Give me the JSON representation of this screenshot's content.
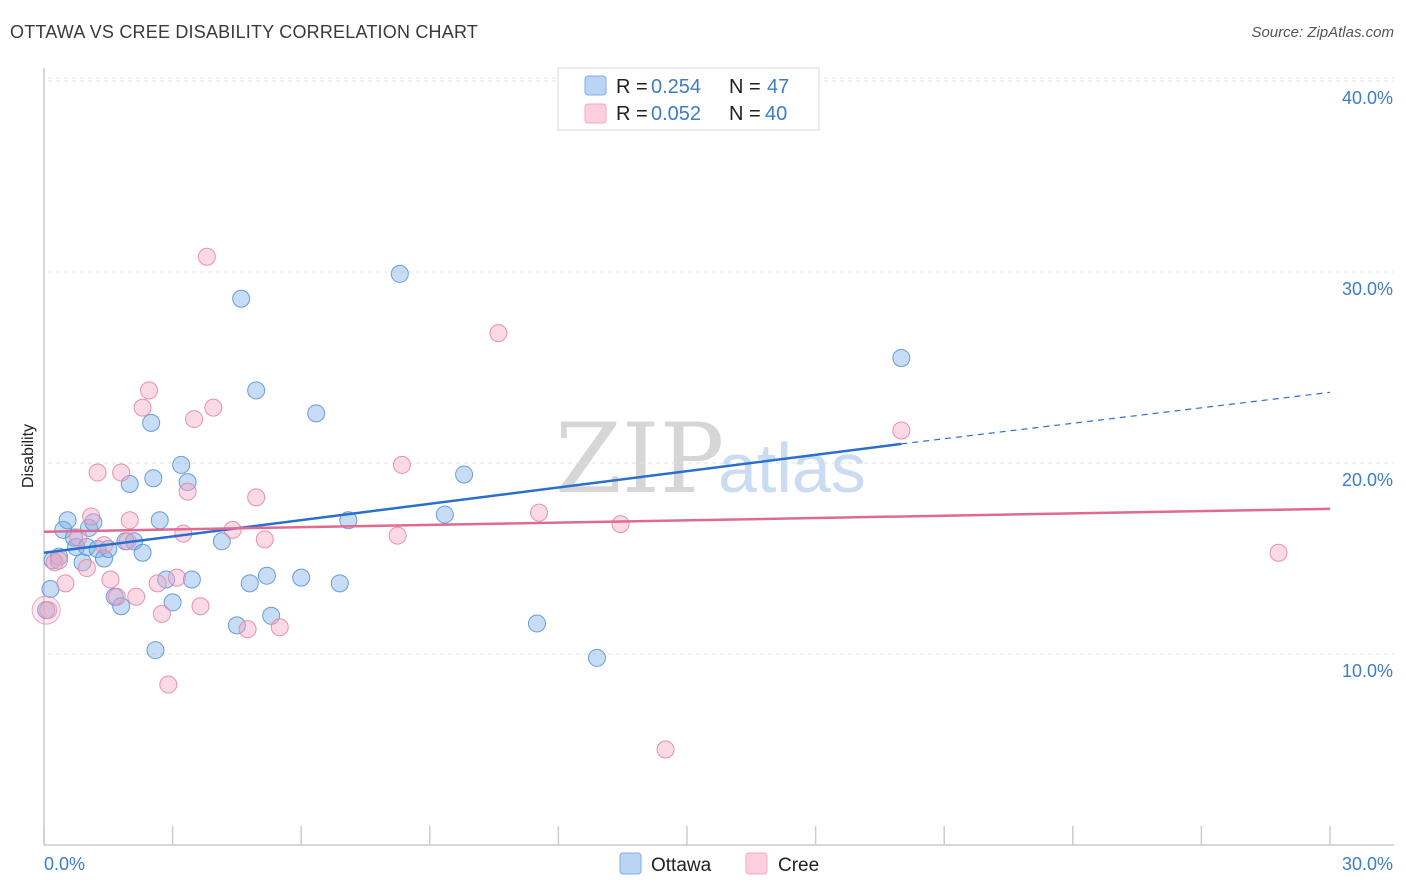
{
  "chart_data": {
    "type": "scatter",
    "title": "OTTAWA VS CREE DISABILITY CORRELATION CHART",
    "source": "Source: ZipAtlas.com",
    "xlabel": "",
    "ylabel": "Disability",
    "xlim": [
      0,
      30
    ],
    "ylim": [
      0,
      41.5
    ],
    "x_tick_labels": [
      "0.0%",
      "30.0%"
    ],
    "y_ticks": [
      10,
      20,
      30,
      40
    ],
    "y_tick_labels": [
      "10.0%",
      "20.0%",
      "30.0%",
      "40.0%"
    ],
    "watermark": {
      "part1": "ZIP",
      "part2": "atlas"
    },
    "legend": [
      {
        "r_label": "R = ",
        "r_value": "0.254",
        "n_label": "N = ",
        "n_value": "47"
      },
      {
        "r_label": "R = ",
        "r_value": "0.052",
        "n_label": "N = ",
        "n_value": "40"
      }
    ],
    "series": [
      {
        "name": "Ottawa",
        "color": "#7aaee8",
        "stroke": "#5b93d6",
        "line_color": "#2a6fcd",
        "trend": {
          "x0": 0,
          "y0": 15.3,
          "x1": 20,
          "y1": 21.0,
          "dash_x1": 30,
          "dash_y1": 23.7
        },
        "points": [
          [
            0.05,
            12.3
          ],
          [
            0.15,
            13.4
          ],
          [
            0.2,
            14.9
          ],
          [
            0.35,
            15.1
          ],
          [
            0.45,
            16.5
          ],
          [
            0.55,
            17.0
          ],
          [
            0.7,
            16.1
          ],
          [
            0.75,
            15.6
          ],
          [
            0.9,
            14.8
          ],
          [
            1.0,
            15.6
          ],
          [
            1.05,
            16.6
          ],
          [
            1.15,
            16.9
          ],
          [
            1.25,
            15.5
          ],
          [
            1.4,
            15.0
          ],
          [
            1.5,
            15.5
          ],
          [
            1.65,
            13.0
          ],
          [
            1.8,
            12.5
          ],
          [
            1.9,
            15.9
          ],
          [
            2.0,
            18.9
          ],
          [
            2.1,
            15.9
          ],
          [
            2.3,
            15.3
          ],
          [
            2.5,
            22.1
          ],
          [
            2.55,
            19.2
          ],
          [
            2.6,
            10.2
          ],
          [
            2.7,
            17.0
          ],
          [
            2.85,
            13.9
          ],
          [
            3.0,
            12.7
          ],
          [
            3.2,
            19.9
          ],
          [
            3.35,
            19.0
          ],
          [
            3.45,
            13.9
          ],
          [
            4.15,
            15.9
          ],
          [
            4.5,
            11.5
          ],
          [
            4.6,
            28.6
          ],
          [
            4.8,
            13.7
          ],
          [
            4.95,
            23.8
          ],
          [
            5.2,
            14.1
          ],
          [
            5.3,
            12.0
          ],
          [
            6.0,
            14.0
          ],
          [
            6.35,
            22.6
          ],
          [
            6.9,
            13.7
          ],
          [
            7.1,
            17.0
          ],
          [
            8.3,
            29.9
          ],
          [
            9.35,
            17.3
          ],
          [
            9.8,
            19.4
          ],
          [
            11.5,
            11.6
          ],
          [
            12.9,
            9.8
          ],
          [
            20.0,
            25.5
          ]
        ]
      },
      {
        "name": "Cree",
        "color": "#f5a8c2",
        "stroke": "#e785a8",
        "line_color": "#e06a92",
        "trend": {
          "x0": 0,
          "y0": 16.4,
          "x1": 30,
          "y1": 17.6
        },
        "points": [
          [
            0.1,
            12.3
          ],
          [
            0.25,
            14.8
          ],
          [
            0.5,
            13.7
          ],
          [
            0.8,
            16.1
          ],
          [
            1.0,
            14.5
          ],
          [
            1.1,
            17.2
          ],
          [
            1.25,
            19.5
          ],
          [
            1.4,
            15.7
          ],
          [
            1.55,
            13.9
          ],
          [
            1.7,
            13.0
          ],
          [
            1.8,
            19.5
          ],
          [
            2.0,
            17.0
          ],
          [
            2.15,
            13.0
          ],
          [
            2.3,
            22.9
          ],
          [
            2.45,
            23.8
          ],
          [
            2.65,
            13.7
          ],
          [
            2.75,
            12.1
          ],
          [
            2.9,
            8.4
          ],
          [
            3.1,
            14.0
          ],
          [
            3.25,
            16.3
          ],
          [
            3.35,
            18.5
          ],
          [
            3.5,
            22.3
          ],
          [
            3.65,
            12.5
          ],
          [
            3.8,
            30.8
          ],
          [
            3.95,
            22.9
          ],
          [
            4.4,
            16.5
          ],
          [
            4.75,
            11.3
          ],
          [
            4.95,
            18.2
          ],
          [
            5.15,
            16.0
          ],
          [
            5.5,
            11.4
          ],
          [
            8.25,
            16.2
          ],
          [
            8.35,
            19.9
          ],
          [
            10.6,
            26.8
          ],
          [
            11.55,
            17.4
          ],
          [
            13.45,
            16.8
          ],
          [
            14.5,
            5.0
          ],
          [
            20.0,
            21.7
          ],
          [
            28.8,
            15.3
          ],
          [
            0.35,
            14.9
          ],
          [
            1.95,
            15.9
          ]
        ]
      }
    ]
  }
}
